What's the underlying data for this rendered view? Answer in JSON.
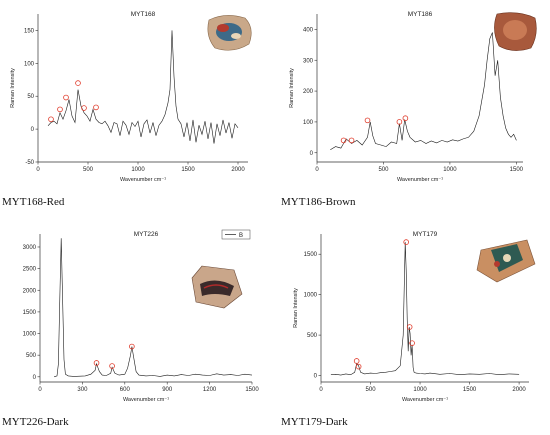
{
  "chart_data": [
    {
      "type": "line",
      "title": "MYT168",
      "caption": "MYT168-Red",
      "xlabel": "Wavenumber cm⁻¹",
      "ylabel": "Raman Intensity",
      "xlim": [
        0,
        2100
      ],
      "ylim": [
        -50,
        175
      ],
      "xticks": [
        0,
        500,
        1000,
        1500,
        2000
      ],
      "yticks": [
        -50,
        0,
        50,
        100,
        150
      ],
      "x": [
        100,
        130,
        160,
        190,
        220,
        250,
        280,
        310,
        340,
        370,
        400,
        430,
        460,
        490,
        520,
        550,
        580,
        610,
        640,
        670,
        700,
        730,
        760,
        790,
        820,
        850,
        880,
        910,
        940,
        970,
        1000,
        1030,
        1060,
        1090,
        1120,
        1150,
        1180,
        1210,
        1240,
        1270,
        1300,
        1320,
        1340,
        1360,
        1380,
        1400,
        1430,
        1460,
        1490,
        1520,
        1550,
        1580,
        1610,
        1640,
        1670,
        1700,
        1730,
        1760,
        1790,
        1820,
        1850,
        1880,
        1910,
        1940,
        1970,
        2000
      ],
      "y": [
        5,
        10,
        12,
        8,
        25,
        15,
        28,
        45,
        20,
        10,
        60,
        35,
        25,
        20,
        12,
        30,
        15,
        10,
        8,
        12,
        5,
        -5,
        10,
        8,
        -10,
        12,
        6,
        -8,
        10,
        4,
        12,
        -12,
        8,
        14,
        -6,
        10,
        -10,
        6,
        12,
        22,
        40,
        60,
        150,
        80,
        35,
        15,
        8,
        -12,
        10,
        -18,
        14,
        -20,
        6,
        -8,
        12,
        -15,
        10,
        -22,
        8,
        -10,
        14,
        -6,
        10,
        -14,
        8,
        2
      ],
      "markers": [
        [
          130,
          15
        ],
        [
          220,
          30
        ],
        [
          280,
          48
        ],
        [
          400,
          70
        ],
        [
          460,
          32
        ],
        [
          580,
          33
        ]
      ]
    },
    {
      "type": "line",
      "title": "MYT186",
      "caption": "MYT186-Brown",
      "xlabel": "Wavenumber cm⁻¹",
      "ylabel": "Raman Intensity",
      "xlim": [
        0,
        1550
      ],
      "ylim": [
        -30,
        450
      ],
      "xticks": [
        0,
        500,
        1000,
        1500
      ],
      "yticks": [
        0,
        100,
        200,
        300,
        400
      ],
      "x": [
        100,
        140,
        180,
        220,
        260,
        300,
        340,
        380,
        400,
        420,
        440,
        480,
        520,
        560,
        600,
        620,
        640,
        660,
        680,
        700,
        740,
        780,
        820,
        860,
        900,
        940,
        980,
        1020,
        1060,
        1100,
        1140,
        1180,
        1220,
        1260,
        1280,
        1300,
        1320,
        1340,
        1360,
        1380,
        1400,
        1420,
        1440,
        1460,
        1480,
        1500
      ],
      "y": [
        10,
        20,
        15,
        45,
        30,
        40,
        25,
        50,
        100,
        55,
        30,
        25,
        20,
        35,
        30,
        95,
        40,
        108,
        70,
        50,
        35,
        40,
        30,
        38,
        32,
        40,
        35,
        42,
        38,
        45,
        50,
        70,
        120,
        220,
        300,
        370,
        390,
        250,
        300,
        180,
        120,
        80,
        60,
        50,
        60,
        40
      ],
      "markers": [
        [
          200,
          40
        ],
        [
          260,
          40
        ],
        [
          380,
          105
        ],
        [
          620,
          100
        ],
        [
          665,
          112
        ]
      ]
    },
    {
      "type": "line",
      "title": "MYT226",
      "caption": "MYT226-Dark",
      "xlabel": "Wavenumber cm⁻¹",
      "ylabel": "",
      "xlim": [
        0,
        1500
      ],
      "ylim": [
        -120,
        3300
      ],
      "xticks": [
        0,
        300,
        600,
        900,
        1200,
        1500
      ],
      "yticks": [
        0,
        500,
        1000,
        1500,
        2000,
        2500,
        3000
      ],
      "legend": [
        "B"
      ],
      "x": [
        100,
        120,
        130,
        140,
        150,
        160,
        170,
        180,
        200,
        240,
        280,
        320,
        360,
        390,
        400,
        420,
        440,
        470,
        500,
        510,
        530,
        560,
        600,
        620,
        640,
        650,
        660,
        680,
        700,
        750,
        800,
        850,
        900,
        950,
        1000,
        1050,
        1100,
        1150,
        1200,
        1250,
        1300,
        1350,
        1400,
        1450,
        1500
      ],
      "y": [
        0,
        20,
        300,
        1800,
        3200,
        1800,
        400,
        60,
        20,
        10,
        15,
        20,
        60,
        150,
        300,
        120,
        40,
        30,
        80,
        220,
        80,
        40,
        60,
        200,
        500,
        700,
        500,
        120,
        40,
        20,
        30,
        10,
        40,
        20,
        50,
        30,
        60,
        40,
        30,
        70,
        40,
        50,
        30,
        60,
        40
      ],
      "markers": [
        [
          400,
          320
        ],
        [
          510,
          250
        ],
        [
          650,
          700
        ]
      ]
    },
    {
      "type": "line",
      "title": "MYT179",
      "caption": "MYT179-Dark",
      "xlabel": "Wavenumber cm⁻¹",
      "ylabel": "Raman Intensity",
      "xlim": [
        0,
        2100
      ],
      "ylim": [
        -80,
        1750
      ],
      "xticks": [
        0,
        500,
        1000,
        1500,
        2000
      ],
      "yticks": [
        0,
        500,
        1000,
        1500
      ],
      "x": [
        100,
        150,
        200,
        250,
        300,
        340,
        360,
        380,
        400,
        440,
        500,
        550,
        600,
        650,
        700,
        750,
        800,
        830,
        850,
        860,
        870,
        880,
        890,
        900,
        910,
        920,
        930,
        940,
        960,
        1000,
        1050,
        1100,
        1200,
        1300,
        1400,
        1500,
        1600,
        1700,
        1800,
        1900,
        2000
      ],
      "y": [
        10,
        15,
        5,
        20,
        10,
        40,
        150,
        120,
        40,
        20,
        30,
        25,
        35,
        40,
        50,
        60,
        120,
        500,
        1650,
        1300,
        700,
        300,
        600,
        520,
        250,
        380,
        100,
        40,
        30,
        25,
        20,
        30,
        15,
        25,
        10,
        20,
        15,
        25,
        10,
        20,
        15
      ],
      "markers": [
        [
          360,
          180
        ],
        [
          380,
          110
        ],
        [
          860,
          1650
        ],
        [
          895,
          600
        ],
        [
          920,
          400
        ]
      ]
    }
  ]
}
